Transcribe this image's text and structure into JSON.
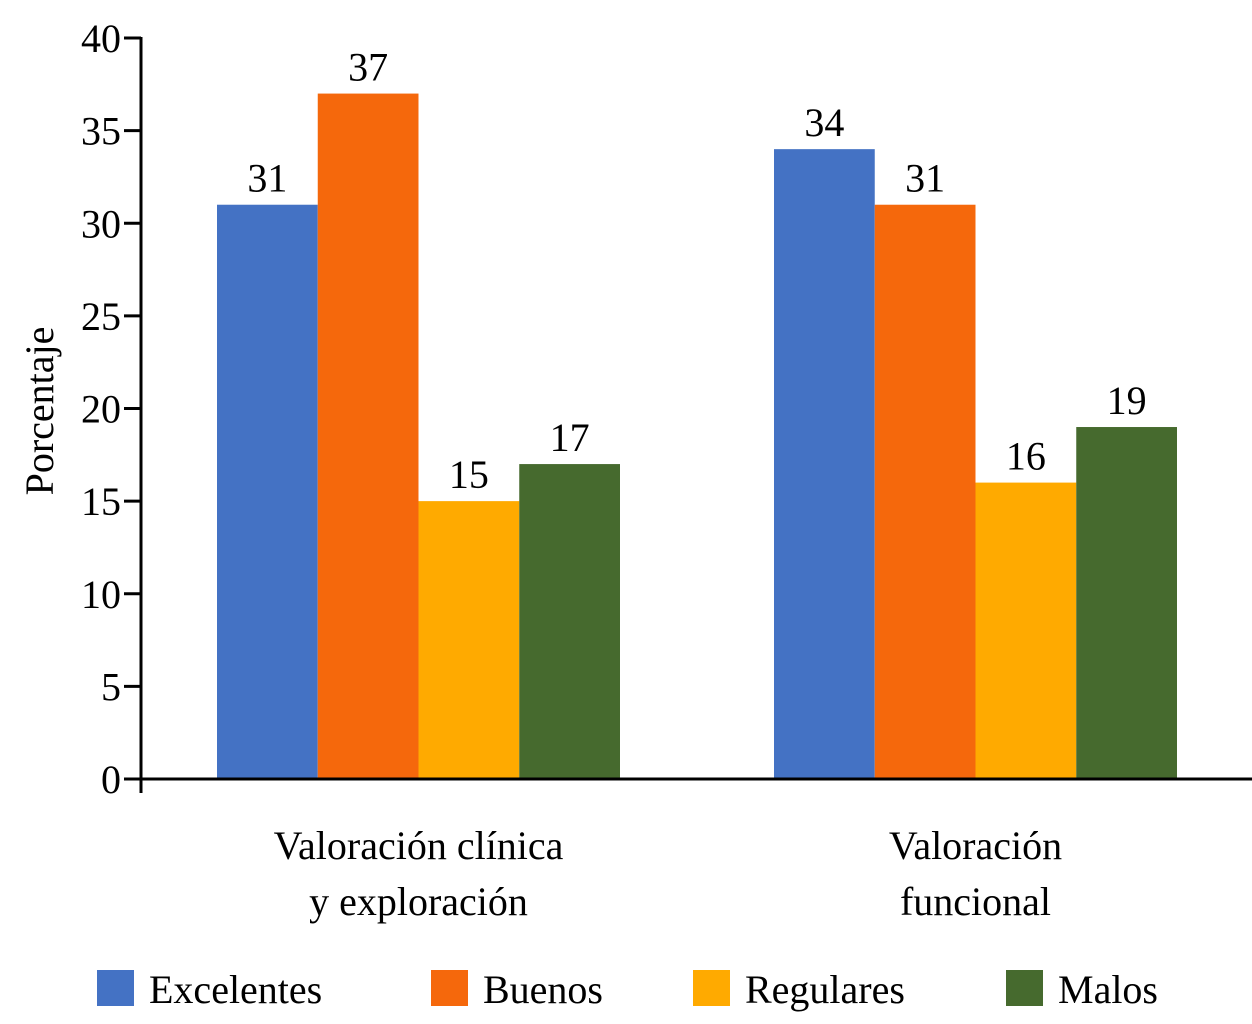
{
  "chart_data": {
    "type": "bar",
    "title": "",
    "xlabel": "",
    "ylabel": "Porcentaje",
    "ylim": [
      0,
      40
    ],
    "yticks": [
      0,
      5,
      10,
      15,
      20,
      25,
      30,
      35,
      40
    ],
    "grid": false,
    "categories": [
      [
        "Valoración clínica",
        "y exploración"
      ],
      [
        "Valoración",
        "funcional"
      ]
    ],
    "series": [
      {
        "name": "Excelentes",
        "color": "#4472C4",
        "values": [
          31,
          34
        ]
      },
      {
        "name": "Buenos",
        "color": "#F5680C",
        "values": [
          37,
          31
        ]
      },
      {
        "name": "Regulares",
        "color": "#FFAA00",
        "values": [
          15,
          16
        ]
      },
      {
        "name": "Malos",
        "color": "#466A2E",
        "values": [
          17,
          19
        ]
      }
    ],
    "data_labels": true,
    "legend_position": "bottom"
  }
}
